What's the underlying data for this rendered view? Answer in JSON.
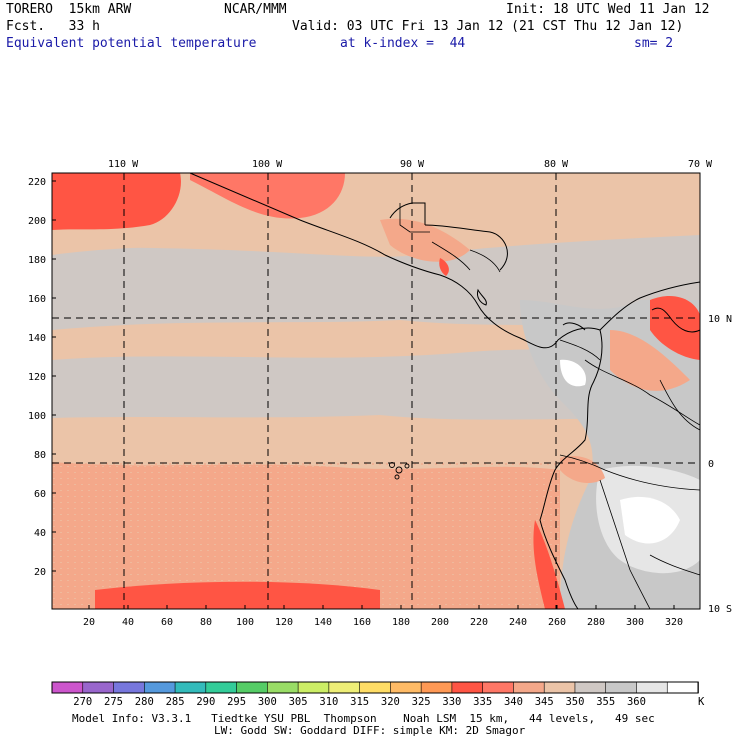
{
  "header": {
    "model": "TORERO  15km ARW",
    "org": "NCAR/MMM",
    "init": "Init: 18 UTC Wed 11 Jan 12",
    "fcst": "Fcst.   33 h",
    "valid": "Valid: 03 UTC Fri 13 Jan 12 (21 CST Thu 12 Jan 12)",
    "field": "Equivalent potential temperature",
    "level": "at k-index =  44",
    "smooth": "sm= 2"
  },
  "map": {
    "lon_labels": [
      "110 W",
      "100 W",
      "90 W",
      "80 W",
      "70 W"
    ],
    "lat_labels": [
      "10 N",
      "0",
      "10 S"
    ],
    "y_ticks": [
      "220",
      "200",
      "180",
      "160",
      "140",
      "120",
      "100",
      "80",
      "60",
      "40",
      "20"
    ],
    "x_ticks": [
      "20",
      "40",
      "60",
      "80",
      "100",
      "120",
      "140",
      "160",
      "180",
      "200",
      "220",
      "240",
      "260",
      "280",
      "300",
      "320"
    ]
  },
  "colorbar": {
    "labels": [
      "270",
      "275",
      "280",
      "285",
      "290",
      "295",
      "300",
      "305",
      "310",
      "315",
      "320",
      "325",
      "330",
      "335",
      "340",
      "345",
      "350",
      "355",
      "360"
    ],
    "unit": "K",
    "colors": [
      "#cc55cc",
      "#9966cc",
      "#7777dd",
      "#5599dd",
      "#33bbbb",
      "#33cc99",
      "#55cc66",
      "#99dd66",
      "#ccee66",
      "#eeee77",
      "#ffdd66",
      "#ffbb66",
      "#ff9955",
      "#ff5544",
      "#ff7766",
      "#f4a88a",
      "#ebc4a8",
      "#cfc8c4",
      "#c8c8c8",
      "#e6e6e6",
      "#ffffff"
    ]
  },
  "footer": {
    "line1": "Model Info: V3.3.1   Tiedtke YSU PBL  Thompson    Noah LSM  15 km,   44 levels,   49 sec",
    "line2": "LW: Godd SW: Goddard DIFF: simple KM: 2D Smagor"
  }
}
